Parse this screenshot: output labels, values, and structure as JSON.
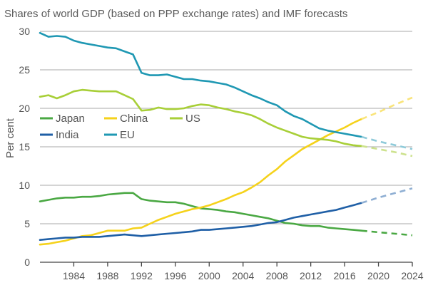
{
  "chart_data": {
    "type": "line",
    "title": "Shares of world GDP (based on PPP exchange rates) and IMF forecasts",
    "xlabel": "",
    "ylabel": "Per cent",
    "xlim": [
      1980,
      2024
    ],
    "ylim": [
      0,
      30
    ],
    "x_ticks": [
      1984,
      1988,
      1992,
      1996,
      2000,
      2004,
      2008,
      2012,
      2016,
      2020,
      2024
    ],
    "y_ticks": [
      0,
      5,
      10,
      15,
      20,
      25,
      30
    ],
    "forecast_start": 2018,
    "grid": true,
    "series": [
      {
        "name": "Japan",
        "color": "#4aa843",
        "forecast_color": "#4aa843",
        "x": [
          1980,
          1981,
          1982,
          1983,
          1984,
          1985,
          1986,
          1987,
          1988,
          1989,
          1990,
          1991,
          1992,
          1993,
          1994,
          1995,
          1996,
          1997,
          1998,
          1999,
          2000,
          2001,
          2002,
          2003,
          2004,
          2005,
          2006,
          2007,
          2008,
          2009,
          2010,
          2011,
          2012,
          2013,
          2014,
          2015,
          2016,
          2017,
          2018
        ],
        "values": [
          7.9,
          8.1,
          8.3,
          8.4,
          8.4,
          8.5,
          8.5,
          8.6,
          8.8,
          8.9,
          9.0,
          9.0,
          8.2,
          8.0,
          7.9,
          7.8,
          7.8,
          7.6,
          7.3,
          7.0,
          6.9,
          6.8,
          6.6,
          6.5,
          6.3,
          6.1,
          5.9,
          5.7,
          5.4,
          5.1,
          5.0,
          4.8,
          4.7,
          4.7,
          4.5,
          4.4,
          4.3,
          4.2,
          4.1
        ],
        "forecast_x": [
          2018,
          2020,
          2022,
          2024
        ],
        "forecast_values": [
          4.1,
          3.9,
          3.7,
          3.5
        ]
      },
      {
        "name": "China",
        "color": "#f5d21b",
        "forecast_color": "#f9e47a",
        "x": [
          1980,
          1981,
          1982,
          1983,
          1984,
          1985,
          1986,
          1987,
          1988,
          1989,
          1990,
          1991,
          1992,
          1993,
          1994,
          1995,
          1996,
          1997,
          1998,
          1999,
          2000,
          2001,
          2002,
          2003,
          2004,
          2005,
          2006,
          2007,
          2008,
          2009,
          2010,
          2011,
          2012,
          2013,
          2014,
          2015,
          2016,
          2017,
          2018
        ],
        "values": [
          2.3,
          2.4,
          2.6,
          2.8,
          3.1,
          3.4,
          3.5,
          3.8,
          4.1,
          4.1,
          4.1,
          4.4,
          4.5,
          5.0,
          5.5,
          5.9,
          6.3,
          6.6,
          6.9,
          7.1,
          7.4,
          7.8,
          8.2,
          8.7,
          9.1,
          9.7,
          10.4,
          11.3,
          12.1,
          13.1,
          13.9,
          14.7,
          15.3,
          15.9,
          16.5,
          17.0,
          17.5,
          18.1,
          18.6
        ],
        "forecast_x": [
          2018,
          2020,
          2022,
          2024
        ],
        "forecast_values": [
          18.6,
          19.5,
          20.5,
          21.4
        ]
      },
      {
        "name": "US",
        "color": "#a8cf38",
        "forecast_color": "#cde28e",
        "x": [
          1980,
          1981,
          1982,
          1983,
          1984,
          1985,
          1986,
          1987,
          1988,
          1989,
          1990,
          1991,
          1992,
          1993,
          1994,
          1995,
          1996,
          1997,
          1998,
          1999,
          2000,
          2001,
          2002,
          2003,
          2004,
          2005,
          2006,
          2007,
          2008,
          2009,
          2010,
          2011,
          2012,
          2013,
          2014,
          2015,
          2016,
          2017,
          2018
        ],
        "values": [
          21.5,
          21.7,
          21.3,
          21.7,
          22.2,
          22.4,
          22.3,
          22.2,
          22.2,
          22.2,
          21.7,
          21.2,
          19.7,
          19.8,
          20.1,
          19.9,
          19.9,
          20.0,
          20.3,
          20.5,
          20.4,
          20.1,
          19.9,
          19.6,
          19.4,
          19.1,
          18.6,
          18.0,
          17.5,
          17.1,
          16.7,
          16.3,
          16.1,
          16.0,
          15.9,
          15.7,
          15.4,
          15.2,
          15.1
        ],
        "forecast_x": [
          2018,
          2020,
          2022,
          2024
        ],
        "forecast_values": [
          15.1,
          14.7,
          14.3,
          13.8
        ]
      },
      {
        "name": "India",
        "color": "#1f5fa6",
        "forecast_color": "#8fafd3",
        "x": [
          1980,
          1981,
          1982,
          1983,
          1984,
          1985,
          1986,
          1987,
          1988,
          1989,
          1990,
          1991,
          1992,
          1993,
          1994,
          1995,
          1996,
          1997,
          1998,
          1999,
          2000,
          2001,
          2002,
          2003,
          2004,
          2005,
          2006,
          2007,
          2008,
          2009,
          2010,
          2011,
          2012,
          2013,
          2014,
          2015,
          2016,
          2017,
          2018
        ],
        "values": [
          2.9,
          3.0,
          3.1,
          3.2,
          3.2,
          3.3,
          3.3,
          3.3,
          3.4,
          3.5,
          3.6,
          3.5,
          3.4,
          3.5,
          3.6,
          3.7,
          3.8,
          3.9,
          4.0,
          4.2,
          4.2,
          4.3,
          4.4,
          4.5,
          4.6,
          4.7,
          4.9,
          5.1,
          5.2,
          5.5,
          5.8,
          6.0,
          6.2,
          6.4,
          6.6,
          6.8,
          7.1,
          7.4,
          7.7
        ],
        "forecast_x": [
          2018,
          2020,
          2022,
          2024
        ],
        "forecast_values": [
          7.7,
          8.4,
          9.0,
          9.6
        ]
      },
      {
        "name": "EU",
        "color": "#1f98b3",
        "forecast_color": "#8fcad9",
        "x": [
          1980,
          1981,
          1982,
          1983,
          1984,
          1985,
          1986,
          1987,
          1988,
          1989,
          1990,
          1991,
          1992,
          1993,
          1994,
          1995,
          1996,
          1997,
          1998,
          1999,
          2000,
          2001,
          2002,
          2003,
          2004,
          2005,
          2006,
          2007,
          2008,
          2009,
          2010,
          2011,
          2012,
          2013,
          2014,
          2015,
          2016,
          2017,
          2018
        ],
        "values": [
          29.8,
          29.3,
          29.4,
          29.3,
          28.8,
          28.5,
          28.3,
          28.1,
          27.9,
          27.8,
          27.4,
          27.0,
          24.6,
          24.3,
          24.3,
          24.4,
          24.1,
          23.8,
          23.8,
          23.6,
          23.5,
          23.3,
          23.1,
          22.7,
          22.2,
          21.7,
          21.3,
          20.8,
          20.4,
          19.6,
          19.0,
          18.6,
          18.0,
          17.4,
          17.1,
          16.9,
          16.7,
          16.5,
          16.3
        ],
        "forecast_x": [
          2018,
          2020,
          2022,
          2024
        ],
        "forecast_values": [
          16.3,
          15.7,
          15.2,
          14.7
        ]
      }
    ],
    "legend": [
      {
        "name": "Japan",
        "color": "#4aa843"
      },
      {
        "name": "China",
        "color": "#f5d21b"
      },
      {
        "name": "US",
        "color": "#a8cf38"
      },
      {
        "name": "India",
        "color": "#1f5fa6"
      },
      {
        "name": "EU",
        "color": "#1f98b3"
      }
    ]
  }
}
